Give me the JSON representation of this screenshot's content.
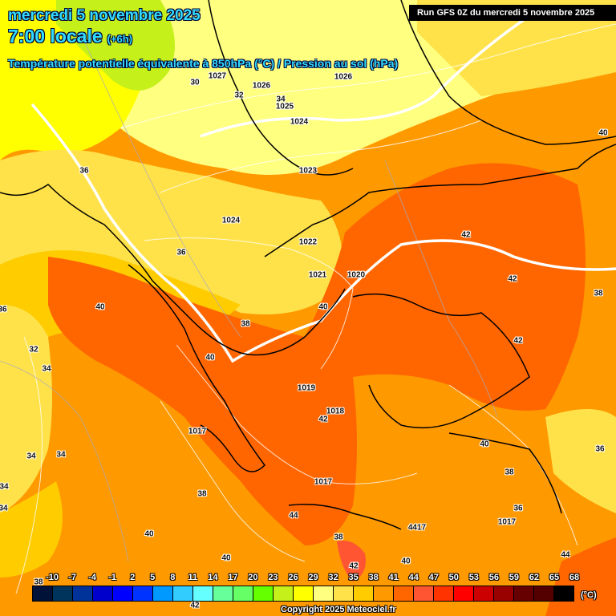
{
  "header": {
    "date": "mercredi 5 novembre 2025",
    "time": "7:00 locale",
    "offset": "(+6h)",
    "parameter": "Température potentielle équivalente à 850hPa (°C) / Pression au sol (hPa)",
    "run": "Run GFS 0Z du mercredi 5 novembre 2025"
  },
  "map_labels": [
    "30",
    "32",
    "1026",
    "34",
    "1025",
    "1026",
    "1027",
    "1024",
    "36",
    "1023",
    "1024",
    "1022",
    "42",
    "40",
    "36",
    "1021",
    "1020",
    "42",
    "38",
    "36",
    "40",
    "40",
    "38",
    "42",
    "32",
    "40",
    "34",
    "1019",
    "1018",
    "42",
    "1017",
    "40",
    "36",
    "34",
    "34",
    "38",
    "34",
    "1017",
    "38",
    "36",
    "34",
    "44",
    "1017",
    "40",
    "4417",
    "38",
    "40",
    "40",
    "44",
    "42",
    "42",
    "38"
  ],
  "legend": {
    "ticks": [
      "-10",
      "-7",
      "-4",
      "-1",
      "2",
      "5",
      "8",
      "11",
      "14",
      "17",
      "20",
      "23",
      "26",
      "29",
      "32",
      "35",
      "38",
      "41",
      "44",
      "47",
      "50",
      "53",
      "56",
      "59",
      "62",
      "65",
      "68"
    ],
    "colors": [
      "#001238",
      "#00345c",
      "#003399",
      "#0000cc",
      "#0000ff",
      "#0033ff",
      "#0099ff",
      "#33ccff",
      "#66ffff",
      "#66ff99",
      "#66ff66",
      "#66ff00",
      "#c6f01a",
      "#ffff00",
      "#ffff80",
      "#ffe24a",
      "#ffcc00",
      "#ff9900",
      "#ff6600",
      "#ff5533",
      "#ff3300",
      "#ff0000",
      "#cc0000",
      "#990000",
      "#660000",
      "#550000",
      "#000000"
    ],
    "unit": "(°C)"
  },
  "copyright": "Copyright 2025 Meteociel.fr"
}
